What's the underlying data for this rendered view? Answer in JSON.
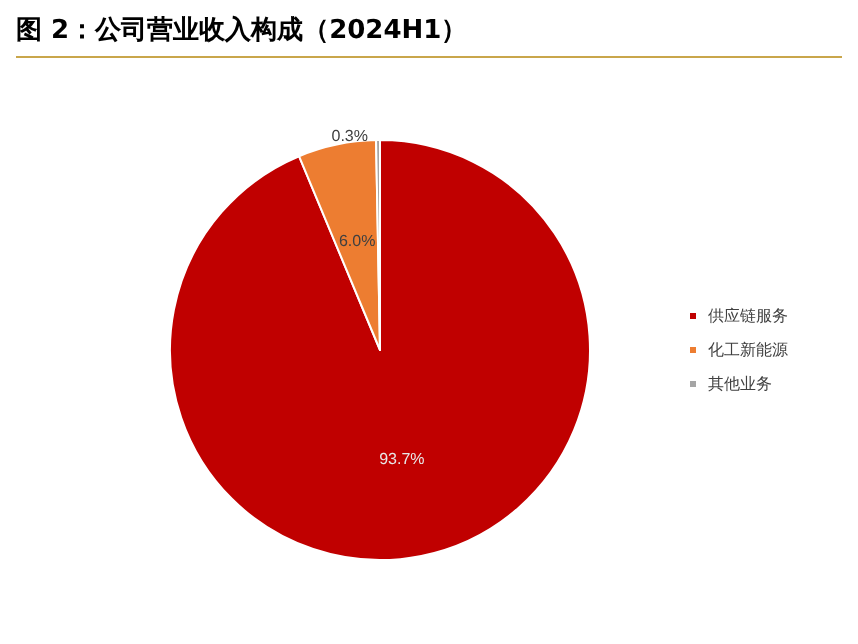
{
  "chart_data": {
    "type": "pie",
    "title": "图 2：公司营业收入构成（2024H1）",
    "categories": [
      "供应链服务",
      "化工新能源",
      "其他业务"
    ],
    "values": [
      93.7,
      6.0,
      0.3
    ],
    "colors": [
      "#c00000",
      "#ed7d31",
      "#a5a5a5"
    ],
    "value_labels": [
      "93.7%",
      "6.0%",
      "0.3%"
    ],
    "legend": "right"
  }
}
